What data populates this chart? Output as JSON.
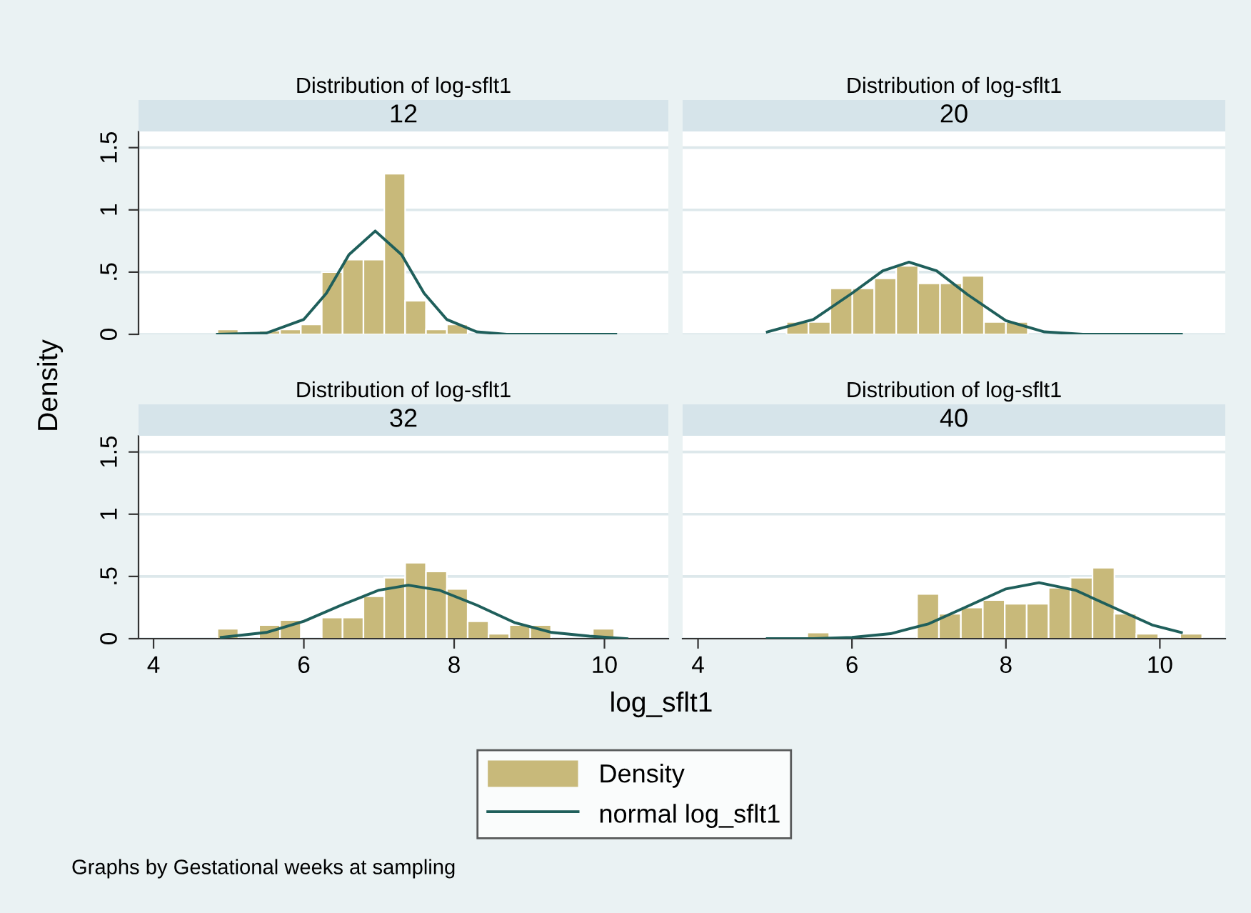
{
  "chart_data": [
    {
      "type": "histogram",
      "title": "Distribution of log-sflt1",
      "subtitle": "12",
      "ylabel": "Density",
      "xlim": [
        3.8,
        10.85
      ],
      "ylim": [
        0,
        1.63
      ],
      "yticks": [
        0,
        {
          "value": 0.5,
          "label": ".5"
        },
        1,
        1.5
      ],
      "grid": "y",
      "tick_labels": "y",
      "series": [
        {
          "type": "histogram",
          "color": "#c8b97a",
          "bins": [
            4.85,
            5.128,
            5.405,
            5.683,
            5.96,
            6.238,
            6.515,
            6.793,
            7.07,
            7.348,
            7.625,
            7.903,
            8.18
          ],
          "values": [
            0.04,
            0,
            0.03,
            0.04,
            0.08,
            0.5,
            0.6,
            0.6,
            1.29,
            0.27,
            0.04,
            0.08
          ]
        },
        {
          "type": "line",
          "color": "#1f5f5b",
          "x": [
            4.85,
            5.5,
            6.0,
            6.3,
            6.6,
            6.95,
            7.3,
            7.6,
            7.9,
            8.3,
            8.7,
            10.15
          ],
          "values": [
            0,
            0.01,
            0.12,
            0.33,
            0.64,
            0.83,
            0.64,
            0.33,
            0.12,
            0.02,
            0,
            0
          ]
        }
      ]
    },
    {
      "type": "histogram",
      "title": "Distribution of log-sflt1",
      "subtitle": "20",
      "xlim": [
        3.8,
        10.85
      ],
      "ylim": [
        0,
        1.63
      ],
      "yticks": [
        {
          "value": 0,
          "label": null
        },
        {
          "value": 0.5,
          "label": null
        },
        {
          "value": 1,
          "label": null
        },
        {
          "value": 1.5,
          "label": null
        }
      ],
      "grid": "y",
      "tick_labels": false,
      "series": [
        {
          "type": "histogram",
          "color": "#c8b97a",
          "bins": [
            5.15,
            5.435,
            5.72,
            6.005,
            6.29,
            6.575,
            6.86,
            7.145,
            7.43,
            7.715,
            8.0,
            8.285
          ],
          "values": [
            0.1,
            0.1,
            0.37,
            0.37,
            0.45,
            0.55,
            0.41,
            0.41,
            0.47,
            0.1,
            0.1
          ]
        },
        {
          "type": "line",
          "color": "#1f5f5b",
          "x": [
            4.9,
            5.5,
            6.0,
            6.4,
            6.74,
            7.1,
            7.5,
            8.0,
            8.5,
            9.0,
            10.28
          ],
          "values": [
            0.02,
            0.12,
            0.33,
            0.51,
            0.58,
            0.51,
            0.32,
            0.11,
            0.02,
            0,
            0
          ]
        }
      ]
    },
    {
      "type": "histogram",
      "title": "Distribution of log-sflt1",
      "subtitle": "32",
      "xlabel": "log_sflt1",
      "legend": "bottom",
      "annotations": [
        "Graphs by Gestational weeks at sampling"
      ],
      "xlim": [
        3.8,
        10.85
      ],
      "xticks": [
        4,
        6,
        8,
        10
      ],
      "ylim": [
        0,
        1.63
      ],
      "yticks": [
        0,
        {
          "value": 0.5,
          "label": ".5"
        },
        1,
        1.5
      ],
      "grid": "y",
      "series": [
        {
          "name": "Density",
          "type": "histogram",
          "color": "#c8b97a",
          "bins": [
            4.85,
            5.128,
            5.405,
            5.683,
            5.96,
            6.238,
            6.515,
            6.793,
            7.07,
            7.348,
            7.625,
            7.903,
            8.18,
            8.458,
            8.735,
            9.013,
            9.29,
            9.845,
            10.13
          ],
          "values": [
            0.08,
            0,
            0.11,
            0.15,
            0,
            0.17,
            0.17,
            0.34,
            0.49,
            0.61,
            0.54,
            0.4,
            0.14,
            0.04,
            0.11,
            0.11,
            0,
            0.08
          ]
        },
        {
          "name": "normal log_sflt1",
          "type": "line",
          "color": "#1f5f5b",
          "x": [
            4.9,
            5.5,
            6.0,
            6.5,
            7.0,
            7.39,
            7.8,
            8.3,
            8.8,
            9.3,
            9.8,
            10.3
          ],
          "values": [
            0.01,
            0.05,
            0.14,
            0.27,
            0.39,
            0.43,
            0.39,
            0.27,
            0.13,
            0.05,
            0.02,
            0
          ]
        }
      ]
    },
    {
      "type": "histogram",
      "title": "Distribution of log-sflt1",
      "subtitle": "40",
      "xlim": [
        3.8,
        10.85
      ],
      "xticks": [
        4,
        6,
        8,
        10
      ],
      "ylim": [
        0,
        1.63
      ],
      "yticks": [
        {
          "value": 0,
          "label": null
        },
        {
          "value": 0.5,
          "label": null
        },
        {
          "value": 1,
          "label": null
        },
        {
          "value": 1.5,
          "label": null
        }
      ],
      "grid": "y",
      "tick_labels": "x",
      "series": [
        {
          "type": "histogram",
          "color": "#c8b97a",
          "bins": [
            5.42,
            5.705,
            6.845,
            7.13,
            7.415,
            7.7,
            7.985,
            8.27,
            8.555,
            8.84,
            9.125,
            9.41,
            9.695,
            9.98,
            10.265,
            10.55
          ],
          "values": [
            0.05,
            0,
            0.36,
            0.2,
            0.25,
            0.31,
            0.28,
            0.28,
            0.41,
            0.49,
            0.57,
            0.2,
            0.04,
            0,
            0.04
          ]
        },
        {
          "type": "line",
          "color": "#1f5f5b",
          "x": [
            4.9,
            5.5,
            6.0,
            6.5,
            7.0,
            7.5,
            8.0,
            8.43,
            8.9,
            9.4,
            9.9,
            10.28
          ],
          "values": [
            0,
            0,
            0.01,
            0.04,
            0.12,
            0.26,
            0.4,
            0.45,
            0.39,
            0.25,
            0.11,
            0.05
          ]
        }
      ]
    }
  ]
}
